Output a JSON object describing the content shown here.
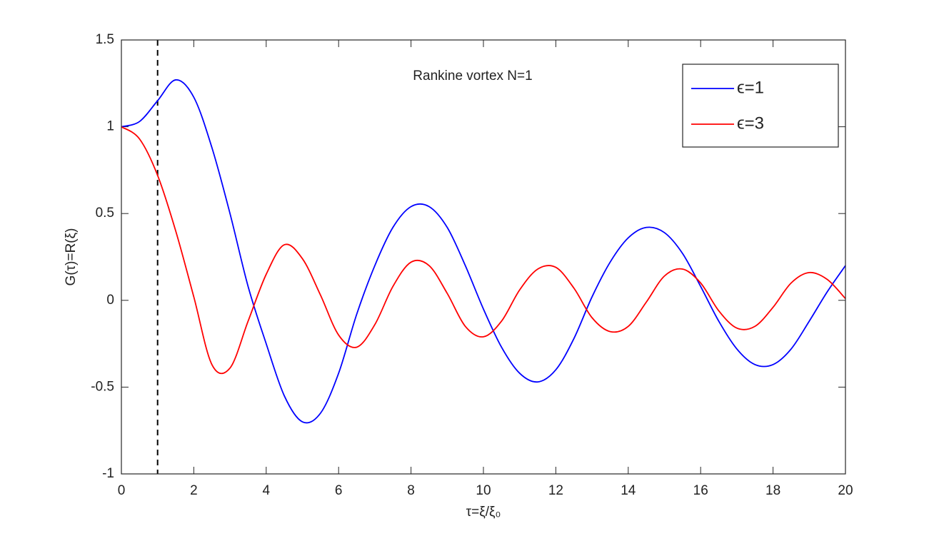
{
  "chart_data": {
    "type": "line",
    "annotation": "Rankine vortex N=1",
    "xlabel": "τ=ξ/ξ₀",
    "ylabel": "G(τ)=R(ξ)",
    "x": [
      0,
      0.5,
      1,
      1.5,
      2,
      2.5,
      3,
      3.5,
      4,
      4.5,
      5,
      5.5,
      6,
      6.5,
      7,
      7.5,
      8,
      8.5,
      9,
      9.5,
      10,
      10.5,
      11,
      11.5,
      12,
      12.5,
      13,
      13.5,
      14,
      14.5,
      15,
      15.5,
      16,
      16.5,
      17,
      17.5,
      18,
      18.5,
      19,
      19.5,
      20
    ],
    "series": [
      {
        "name": "ϵ=1",
        "color": "#0000ff",
        "values": [
          1,
          1.03,
          1.15,
          1.27,
          1.17,
          0.88,
          0.5,
          0.08,
          -0.25,
          -0.55,
          -0.7,
          -0.65,
          -0.42,
          -0.08,
          0.2,
          0.42,
          0.54,
          0.54,
          0.42,
          0.2,
          -0.05,
          -0.27,
          -0.42,
          -0.47,
          -0.4,
          -0.22,
          0.02,
          0.22,
          0.36,
          0.42,
          0.39,
          0.27,
          0.08,
          -0.12,
          -0.28,
          -0.37,
          -0.37,
          -0.28,
          -0.12,
          0.05,
          0.2
        ]
      },
      {
        "name": "ϵ=3",
        "color": "#ff0000",
        "values": [
          1,
          0.93,
          0.72,
          0.4,
          0.02,
          -0.37,
          -0.39,
          -0.12,
          0.15,
          0.32,
          0.24,
          0.03,
          -0.2,
          -0.27,
          -0.14,
          0.08,
          0.22,
          0.2,
          0.04,
          -0.15,
          -0.21,
          -0.12,
          0.06,
          0.18,
          0.19,
          0.07,
          -0.1,
          -0.18,
          -0.15,
          -0.01,
          0.14,
          0.18,
          0.1,
          -0.06,
          -0.16,
          -0.15,
          -0.04,
          0.1,
          0.16,
          0.12,
          0.01
        ]
      }
    ],
    "vline": 1,
    "xlim": [
      0,
      20
    ],
    "xticks": [
      0,
      2,
      4,
      6,
      8,
      10,
      12,
      14,
      16,
      18,
      20
    ],
    "ylim": [
      -1,
      1.5
    ],
    "yticks": [
      -1,
      -0.5,
      0,
      0.5,
      1,
      1.5
    ],
    "legend": "upper right"
  }
}
